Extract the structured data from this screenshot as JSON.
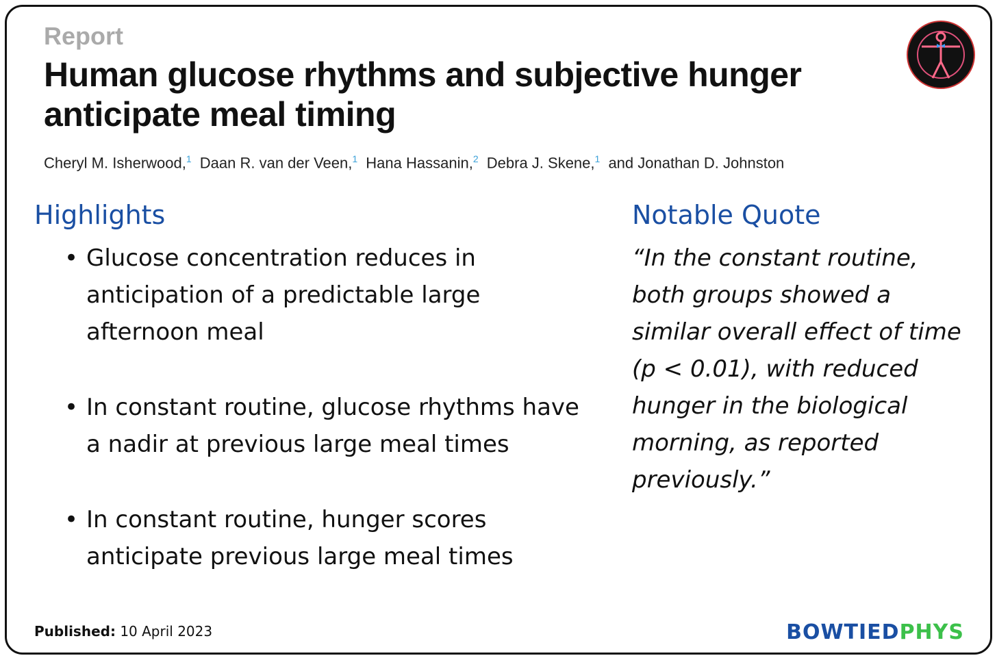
{
  "header": {
    "kicker": "Report",
    "title_line1": "Human glucose rhythms and subjective hunger",
    "title_line2": "anticipate meal timing",
    "authors": [
      {
        "name": "Cheryl M. Isherwood,",
        "sup": "1"
      },
      {
        "name": "Daan R. van der Veen,",
        "sup": "1"
      },
      {
        "name": "Hana Hassanin,",
        "sup": "2"
      },
      {
        "name": "Debra J. Skene,",
        "sup": "1"
      },
      {
        "name": "and Jonathan D. Johnston",
        "sup": ""
      }
    ]
  },
  "highlights": {
    "heading": "Highlights",
    "items": [
      [
        "Glucose concentration reduces in",
        "anticipation of a predictable large",
        "afternoon meal"
      ],
      [
        "In constant routine, glucose rhythms have",
        "a nadir at previous large meal times"
      ],
      [
        "In constant routine, hunger scores",
        "anticipate previous large meal times"
      ]
    ]
  },
  "quote": {
    "heading": "Notable Quote",
    "lines": [
      "“In the constant routine,",
      "both groups showed a",
      "similar overall effect of time",
      "(p < 0.01), with reduced",
      "hunger in the biological",
      "morning, as reported",
      "previously.”"
    ]
  },
  "footer": {
    "published_label": "Published:",
    "published_date": "10 April 2023",
    "brand_left": "BOWTIED",
    "brand_right": "PHYS"
  }
}
